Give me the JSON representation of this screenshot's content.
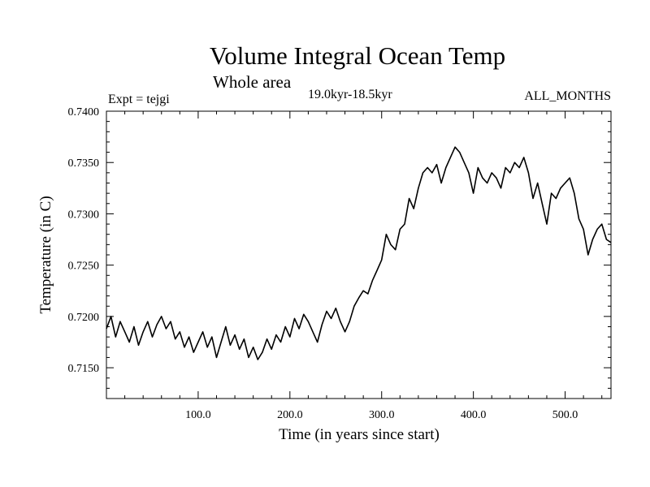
{
  "chart_data": {
    "type": "line",
    "title": "Volume Integral Ocean Temp",
    "subtitle": "Whole area",
    "time_range": "19.0kyr-18.5kyr",
    "expt_label": "Expt = tejgi",
    "season_label": "ALL_MONTHS",
    "xlabel": "Time (in years since start)",
    "ylabel": "Temperature (in C)",
    "xlim": [
      0,
      550
    ],
    "ylim": [
      0.712,
      0.74
    ],
    "x_ticks": [
      100,
      200,
      300,
      400,
      500
    ],
    "x_tick_labels": [
      "100.0",
      "200.0",
      "300.0",
      "400.0",
      "500.0"
    ],
    "y_ticks": [
      0.715,
      0.72,
      0.725,
      0.73,
      0.735,
      0.74
    ],
    "y_tick_labels": [
      "0.7150",
      "0.7200",
      "0.7250",
      "0.7300",
      "0.7350",
      "0.7400"
    ],
    "series": [
      {
        "name": "tejgi",
        "x": [
          0,
          5,
          10,
          15,
          20,
          25,
          30,
          35,
          40,
          45,
          50,
          55,
          60,
          65,
          70,
          75,
          80,
          85,
          90,
          95,
          100,
          105,
          110,
          115,
          120,
          125,
          130,
          135,
          140,
          145,
          150,
          155,
          160,
          165,
          170,
          175,
          180,
          185,
          190,
          195,
          200,
          205,
          210,
          215,
          220,
          225,
          230,
          235,
          240,
          245,
          250,
          255,
          260,
          265,
          270,
          275,
          280,
          285,
          290,
          295,
          300,
          305,
          310,
          315,
          320,
          325,
          330,
          335,
          340,
          345,
          350,
          355,
          360,
          365,
          370,
          375,
          380,
          385,
          390,
          395,
          400,
          405,
          410,
          415,
          420,
          425,
          430,
          435,
          440,
          445,
          450,
          455,
          460,
          465,
          470,
          475,
          480,
          485,
          490,
          495,
          500,
          505,
          510,
          515,
          520,
          525,
          530,
          535,
          540,
          545,
          550
        ],
        "values": [
          0.7188,
          0.72,
          0.718,
          0.7195,
          0.7185,
          0.7175,
          0.719,
          0.7172,
          0.7185,
          0.7195,
          0.718,
          0.7192,
          0.72,
          0.7188,
          0.7195,
          0.7178,
          0.7185,
          0.717,
          0.718,
          0.7165,
          0.7175,
          0.7185,
          0.717,
          0.718,
          0.716,
          0.7175,
          0.719,
          0.7172,
          0.7182,
          0.7168,
          0.7178,
          0.716,
          0.717,
          0.7158,
          0.7165,
          0.7178,
          0.7168,
          0.7182,
          0.7175,
          0.719,
          0.718,
          0.7198,
          0.7188,
          0.7202,
          0.7195,
          0.7185,
          0.7175,
          0.7192,
          0.7205,
          0.7198,
          0.7208,
          0.7195,
          0.7185,
          0.7195,
          0.721,
          0.7218,
          0.7225,
          0.7222,
          0.7235,
          0.7245,
          0.7255,
          0.728,
          0.727,
          0.7265,
          0.7285,
          0.729,
          0.7315,
          0.7305,
          0.7325,
          0.734,
          0.7345,
          0.734,
          0.7348,
          0.733,
          0.7345,
          0.7355,
          0.7365,
          0.736,
          0.735,
          0.734,
          0.732,
          0.7345,
          0.7335,
          0.733,
          0.734,
          0.7335,
          0.7325,
          0.7345,
          0.734,
          0.735,
          0.7345,
          0.7355,
          0.734,
          0.7315,
          0.733,
          0.731,
          0.729,
          0.732,
          0.7315,
          0.7325,
          0.733,
          0.7335,
          0.732,
          0.7295,
          0.7285,
          0.726,
          0.7275,
          0.7285,
          0.729,
          0.7275,
          0.7272
        ]
      }
    ]
  }
}
